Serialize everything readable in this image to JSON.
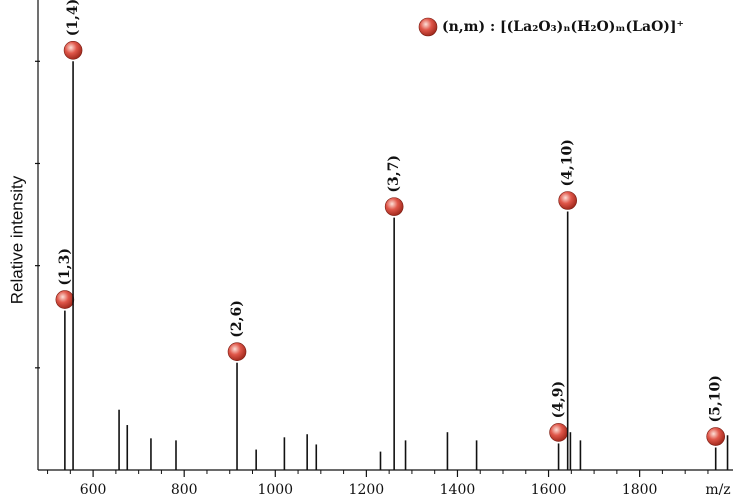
{
  "chart_data": {
    "type": "stem",
    "x_label": "m/z",
    "y_label": "Relative intensity",
    "xlim": [
      479,
      2005
    ],
    "ylim": [
      0,
      4.6
    ],
    "xticks": [
      600,
      800,
      1000,
      1200,
      1400,
      1600,
      1800
    ],
    "xminorticks": [
      500,
      550,
      650,
      700,
      750,
      850,
      900,
      950,
      1050,
      1100,
      1150,
      1250,
      1300,
      1350,
      1450,
      1500,
      1550,
      1650,
      1700,
      1750,
      1850,
      1900,
      1950
    ],
    "yticks": [
      1,
      2,
      3,
      4
    ],
    "legend": "top-right",
    "series": [
      {
        "name": "(n,m) : [(La₂O₃)ₙ(H₂O)ₘ(LaO)]⁺",
        "color": "#e0574a",
        "x": [
          538,
          556,
          657,
          675,
          727,
          782,
          916,
          958,
          1020,
          1070,
          1090,
          1231,
          1261,
          1286,
          1378,
          1442,
          1622,
          1642,
          1648,
          1670,
          1967,
          1993
        ],
        "values": [
          1.56,
          4.0,
          0.59,
          0.44,
          0.31,
          0.29,
          1.05,
          0.2,
          0.32,
          0.35,
          0.25,
          0.18,
          2.47,
          0.29,
          0.37,
          0.29,
          0.26,
          2.53,
          0.37,
          0.29,
          0.22,
          0.34
        ],
        "point_labels": [
          "(1,3)",
          "(1,4)",
          null,
          null,
          null,
          null,
          "(2,6)",
          null,
          null,
          null,
          null,
          null,
          "(3,7)",
          null,
          null,
          null,
          "(4,9)",
          "(4,10)",
          null,
          null,
          "(5,10)",
          null
        ]
      }
    ]
  }
}
